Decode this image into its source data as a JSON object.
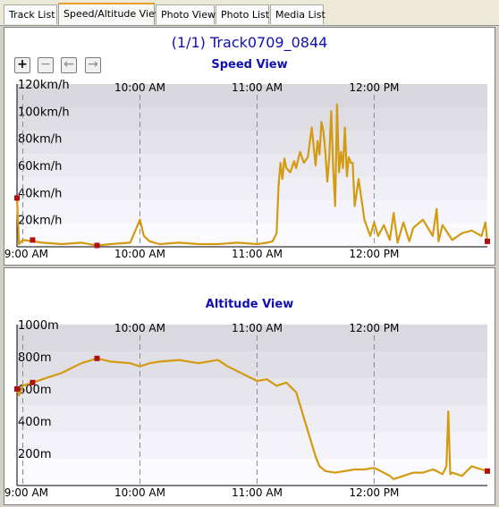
{
  "tabs": [
    "Track List",
    "Speed/Altitude View",
    "Photo View",
    "Photo List",
    "Media List"
  ],
  "active_tab": 1,
  "track_title": "(1/1) Track0709_0844",
  "toolbar": {
    "zoom_in_icon": "+",
    "zoom_out_icon": "−",
    "back_icon": "←",
    "forward_icon": "→"
  },
  "colors": {
    "line": "#d49a10",
    "marker": "#b01010",
    "title": "#1010b0"
  },
  "chart_data": [
    {
      "type": "line",
      "title": "Speed View",
      "x_ticks": [
        "09:00 AM",
        "10:00 AM",
        "11:00 AM",
        "12:00 PM"
      ],
      "top_ticks": [
        "10:00 AM",
        "11:00 AM",
        "12:00 PM"
      ],
      "y_ticks": [
        "20km/h",
        "40km/h",
        "60km/h",
        "80km/h",
        "100km/h",
        "120km/h"
      ],
      "ylim": [
        0,
        120
      ],
      "xlim": [
        "08:57",
        "12:58"
      ],
      "series": [
        {
          "x": [
            "08:57",
            "08:58",
            "09:00",
            "09:10",
            "09:20",
            "09:30",
            "09:38",
            "09:45",
            "09:55",
            "10:00",
            "10:02",
            "10:05",
            "10:10",
            "10:20",
            "10:30",
            "10:40",
            "10:50",
            "11:00",
            "11:05",
            "11:08",
            "11:10",
            "11:11",
            "11:12",
            "11:13",
            "11:14",
            "11:15",
            "11:17",
            "11:19",
            "11:20",
            "11:22",
            "11:24",
            "11:26",
            "11:28",
            "11:30",
            "11:31",
            "11:32",
            "11:33",
            "11:34",
            "11:35",
            "11:36",
            "11:37",
            "11:38",
            "11:39",
            "11:40",
            "11:41",
            "11:42",
            "11:43",
            "11:44",
            "11:45",
            "11:46",
            "11:47",
            "11:48",
            "11:49",
            "11:50",
            "11:52",
            "11:55",
            "11:58",
            "12:00",
            "12:02",
            "12:05",
            "12:08",
            "12:10",
            "12:12",
            "12:15",
            "12:18",
            "12:20",
            "12:25",
            "12:30",
            "12:32",
            "12:33",
            "12:35",
            "12:40",
            "12:45",
            "12:50",
            "12:55",
            "12:57",
            "12:58"
          ],
          "y": [
            36,
            2,
            5,
            3,
            2,
            3,
            1,
            2,
            3,
            20,
            8,
            4,
            2,
            3,
            2,
            2,
            3,
            2,
            3,
            4,
            10,
            45,
            62,
            50,
            65,
            58,
            55,
            63,
            58,
            70,
            62,
            66,
            88,
            60,
            78,
            68,
            92,
            85,
            70,
            48,
            66,
            100,
            58,
            30,
            105,
            55,
            70,
            58,
            88,
            52,
            66,
            62,
            62,
            30,
            50,
            20,
            8,
            18,
            8,
            16,
            5,
            25,
            3,
            18,
            4,
            14,
            20,
            8,
            28,
            4,
            16,
            5,
            10,
            12,
            8,
            18,
            4
          ],
          "markers_x": [
            "08:57",
            "09:05",
            "09:38",
            "12:58"
          ],
          "markers_y": [
            36,
            5,
            1,
            4
          ]
        }
      ]
    },
    {
      "type": "line",
      "title": "Altitude View",
      "x_ticks": [
        "09:00 AM",
        "10:00 AM",
        "11:00 AM",
        "12:00 PM"
      ],
      "top_ticks": [
        "10:00 AM",
        "11:00 AM",
        "12:00 PM"
      ],
      "y_ticks": [
        "200m",
        "400m",
        "600m",
        "800m",
        "1000m"
      ],
      "ylim": [
        0,
        1000
      ],
      "xlim": [
        "08:57",
        "12:58"
      ],
      "series": [
        {
          "x": [
            "08:57",
            "08:58",
            "09:00",
            "09:05",
            "09:10",
            "09:20",
            "09:30",
            "09:38",
            "09:45",
            "09:55",
            "10:00",
            "10:05",
            "10:10",
            "10:20",
            "10:30",
            "10:40",
            "10:45",
            "10:50",
            "10:55",
            "11:00",
            "11:05",
            "11:10",
            "11:15",
            "11:20",
            "11:22",
            "11:25",
            "11:28",
            "11:30",
            "11:32",
            "11:35",
            "11:40",
            "11:45",
            "11:50",
            "11:55",
            "12:00",
            "12:05",
            "12:08",
            "12:10",
            "12:15",
            "12:20",
            "12:25",
            "12:30",
            "12:32",
            "12:35",
            "12:37",
            "12:38",
            "12:39",
            "12:40",
            "12:45",
            "12:50",
            "12:55",
            "12:58"
          ],
          "y": [
            600,
            560,
            620,
            640,
            660,
            700,
            760,
            790,
            770,
            760,
            740,
            760,
            770,
            780,
            760,
            780,
            740,
            710,
            680,
            650,
            660,
            620,
            640,
            580,
            500,
            380,
            260,
            180,
            120,
            90,
            80,
            90,
            100,
            100,
            110,
            80,
            60,
            40,
            60,
            80,
            80,
            100,
            90,
            70,
            120,
            460,
            70,
            80,
            60,
            120,
            100,
            90
          ],
          "markers_x": [
            "08:57",
            "09:05",
            "09:38",
            "12:58"
          ],
          "markers_y": [
            600,
            640,
            790,
            90
          ]
        }
      ]
    }
  ]
}
